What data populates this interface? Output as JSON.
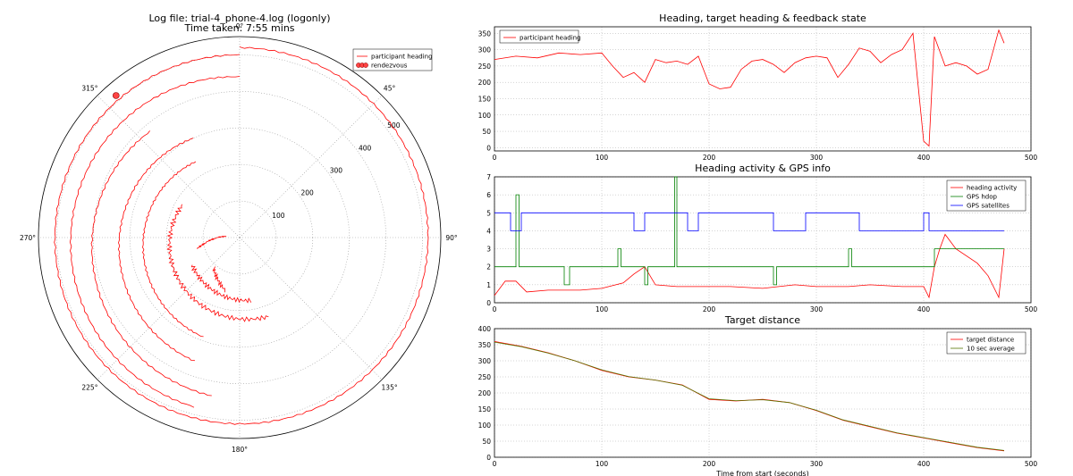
{
  "chart_data": [
    {
      "type": "polar-line",
      "title": "Log file: trial-4_phone-4.log (logonly)",
      "subtitle": "Time taken: 7:55 mins",
      "angle_ticks": [
        "0°",
        "45°",
        "90°",
        "135°",
        "180°",
        "225°",
        "270°",
        "315°"
      ],
      "radial_ticks": [
        100,
        200,
        300,
        400,
        500
      ],
      "rmax": 550,
      "legend": [
        "participant heading",
        "rendezvous"
      ],
      "legend_position": "top-right",
      "series": [
        {
          "name": "participant heading",
          "color": "#ff0000",
          "segments": [
            {
              "r": [
                120,
                40
              ],
              "theta": [
                255,
                275
              ]
            },
            {
              "r": [
                150,
                110
              ],
              "theta": [
                195,
                220
              ]
            },
            {
              "r": [
                175,
                150
              ],
              "theta": [
                170,
                240
              ]
            },
            {
              "r": [
                230,
                180
              ],
              "theta": [
                160,
                300
              ]
            },
            {
              "r": [
                290,
                240
              ],
              "theta": [
                200,
                330
              ]
            },
            {
              "r": [
                360,
                300
              ],
              "theta": [
                200,
                335
              ]
            },
            {
              "r": [
                440,
                380
              ],
              "theta": [
                190,
                320
              ]
            },
            {
              "r": [
                480,
                440
              ],
              "theta": [
                195,
                360
              ]
            },
            {
              "r": [
                520,
                500
              ],
              "theta": [
                0,
                360
              ]
            }
          ]
        },
        {
          "name": "rendezvous",
          "color": "#ff4444",
          "r": [
            515
          ],
          "theta": [
            319
          ]
        }
      ]
    },
    {
      "type": "line",
      "title": "Heading, target heading & feedback state",
      "xlim": [
        0,
        500
      ],
      "ylim": [
        -10,
        370
      ],
      "xticks": [
        0,
        100,
        200,
        300,
        400,
        500
      ],
      "yticks": [
        0,
        50,
        100,
        150,
        200,
        250,
        300,
        350
      ],
      "legend": [
        "participant heading"
      ],
      "legend_position": "top-left",
      "series": [
        {
          "name": "participant heading",
          "color": "#ff0000",
          "x": [
            0,
            20,
            40,
            60,
            80,
            100,
            110,
            120,
            130,
            140,
            150,
            160,
            170,
            180,
            190,
            200,
            210,
            220,
            230,
            240,
            250,
            260,
            270,
            280,
            290,
            300,
            310,
            320,
            330,
            340,
            350,
            360,
            370,
            380,
            390,
            400,
            405,
            410,
            420,
            430,
            440,
            450,
            460,
            470,
            475
          ],
          "y": [
            270,
            280,
            275,
            290,
            285,
            290,
            250,
            215,
            230,
            200,
            270,
            260,
            265,
            255,
            280,
            195,
            180,
            185,
            240,
            265,
            270,
            255,
            230,
            260,
            275,
            280,
            275,
            215,
            255,
            305,
            295,
            260,
            285,
            300,
            350,
            20,
            5,
            340,
            250,
            260,
            250,
            225,
            240,
            360,
            320
          ]
        }
      ]
    },
    {
      "type": "line",
      "title": "Heading activity & GPS info",
      "xlim": [
        0,
        500
      ],
      "ylim": [
        0,
        7
      ],
      "xticks": [
        0,
        100,
        200,
        300,
        400,
        500
      ],
      "yticks": [
        0,
        1,
        2,
        3,
        4,
        5,
        6,
        7
      ],
      "legend": [
        "heading activity",
        "GPS hdop",
        "GPS satellites"
      ],
      "legend_position": "top-right",
      "series": [
        {
          "name": "heading activity",
          "color": "#ff0000",
          "x": [
            0,
            10,
            20,
            30,
            50,
            80,
            100,
            120,
            130,
            140,
            150,
            170,
            200,
            220,
            250,
            280,
            300,
            330,
            350,
            380,
            400,
            405,
            410,
            415,
            420,
            430,
            450,
            460,
            470,
            475
          ],
          "y": [
            0.4,
            1.2,
            1.2,
            0.6,
            0.7,
            0.7,
            0.8,
            1.1,
            1.6,
            2.0,
            1.0,
            0.9,
            0.9,
            0.9,
            0.8,
            1.0,
            0.9,
            0.9,
            1.0,
            0.9,
            0.9,
            0.3,
            2.0,
            3.0,
            3.8,
            3.0,
            2.2,
            1.5,
            0.3,
            3.0
          ]
        },
        {
          "name": "GPS hdop",
          "color": "#008000",
          "x": [
            0,
            20,
            20,
            23,
            23,
            65,
            65,
            70,
            70,
            115,
            115,
            118,
            118,
            140,
            140,
            143,
            143,
            168,
            168,
            170,
            170,
            260,
            260,
            263,
            263,
            330,
            330,
            333,
            333,
            410,
            410,
            415,
            415,
            475
          ],
          "y": [
            2,
            2,
            6,
            6,
            2,
            2,
            1,
            1,
            2,
            2,
            3,
            3,
            2,
            2,
            1,
            1,
            2,
            2,
            7,
            7,
            2,
            2,
            1,
            1,
            2,
            2,
            3,
            3,
            2,
            2,
            3,
            3,
            3,
            3
          ]
        },
        {
          "name": "GPS satellites",
          "color": "#0000ff",
          "x": [
            0,
            15,
            15,
            25,
            25,
            130,
            130,
            140,
            140,
            180,
            180,
            190,
            190,
            260,
            260,
            290,
            290,
            340,
            340,
            400,
            400,
            405,
            405,
            475
          ],
          "y": [
            5,
            5,
            4,
            4,
            5,
            5,
            4,
            4,
            5,
            5,
            4,
            4,
            5,
            5,
            4,
            4,
            5,
            5,
            4,
            4,
            5,
            5,
            4,
            4
          ]
        }
      ]
    },
    {
      "type": "line",
      "title": "Target distance",
      "xlabel": "Time from start (seconds)",
      "xlim": [
        0,
        500
      ],
      "ylim": [
        0,
        400
      ],
      "xticks": [
        0,
        100,
        200,
        300,
        400,
        500
      ],
      "yticks": [
        0,
        50,
        100,
        150,
        200,
        250,
        300,
        350,
        400
      ],
      "legend": [
        "target distance",
        "10 sec average"
      ],
      "legend_position": "top-right",
      "series": [
        {
          "name": "target distance",
          "color": "#ff0000",
          "x": [
            0,
            25,
            50,
            75,
            100,
            125,
            150,
            175,
            200,
            225,
            250,
            275,
            300,
            325,
            350,
            375,
            400,
            425,
            450,
            475
          ],
          "y": [
            360,
            345,
            325,
            300,
            270,
            250,
            240,
            225,
            180,
            175,
            180,
            170,
            145,
            115,
            95,
            75,
            60,
            45,
            30,
            20
          ]
        },
        {
          "name": "10 sec average",
          "color": "#557700",
          "x": [
            0,
            25,
            50,
            75,
            100,
            125,
            150,
            175,
            200,
            225,
            250,
            275,
            300,
            325,
            350,
            375,
            400,
            425,
            450,
            475
          ],
          "y": [
            358,
            344,
            324,
            300,
            272,
            251,
            240,
            224,
            182,
            176,
            179,
            170,
            146,
            116,
            96,
            76,
            61,
            46,
            31,
            21
          ]
        }
      ]
    }
  ]
}
